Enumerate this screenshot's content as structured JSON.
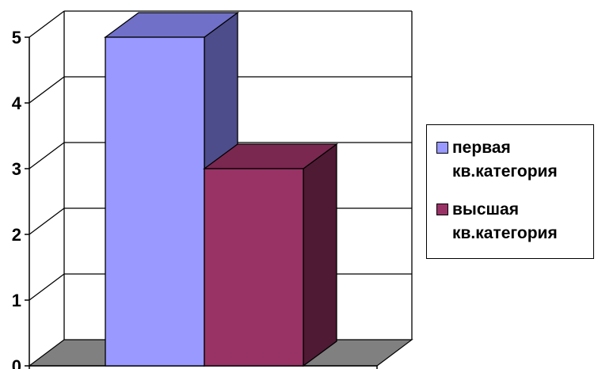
{
  "chart_data": {
    "type": "bar",
    "style": "3d-column",
    "categories": [
      ""
    ],
    "series": [
      {
        "name": "первая кв.категория",
        "values": [
          5
        ],
        "color": "#9999ff",
        "top_color": "#7070c8",
        "side_color": "#4d4d8c"
      },
      {
        "name": "высшая кв.категория",
        "values": [
          3
        ],
        "color": "#993366",
        "top_color": "#7a2850",
        "side_color": "#4f1a34"
      }
    ],
    "ylim": [
      0,
      5
    ],
    "yticks": [
      "0",
      "1",
      "2",
      "3",
      "4",
      "5"
    ],
    "grid": true,
    "legend_position": "right",
    "floor_color": "#808080",
    "title": "",
    "xlabel": "",
    "ylabel": ""
  }
}
